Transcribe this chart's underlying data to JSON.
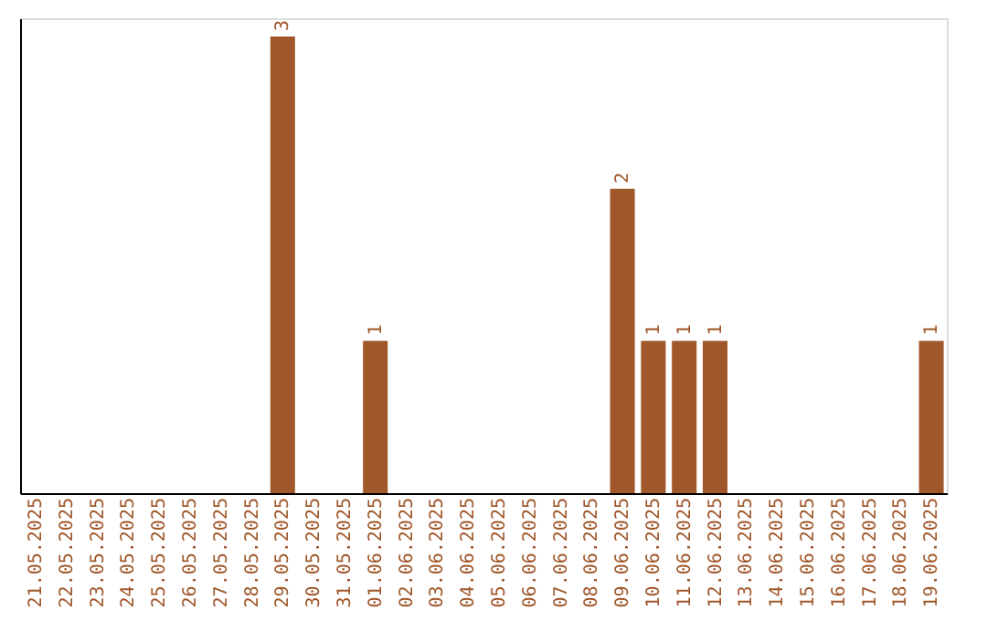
{
  "chart_data": {
    "type": "bar",
    "categories": [
      "21.05.2025",
      "22.05.2025",
      "23.05.2025",
      "24.05.2025",
      "25.05.2025",
      "26.05.2025",
      "27.05.2025",
      "28.05.2025",
      "29.05.2025",
      "30.05.2025",
      "31.05.2025",
      "01.06.2025",
      "02.06.2025",
      "03.06.2025",
      "04.06.2025",
      "05.06.2025",
      "06.06.2025",
      "07.06.2025",
      "08.06.2025",
      "09.06.2025",
      "10.06.2025",
      "11.06.2025",
      "12.06.2025",
      "13.06.2025",
      "14.06.2025",
      "15.06.2025",
      "16.06.2025",
      "17.06.2025",
      "18.06.2025",
      "19.06.2025"
    ],
    "values": [
      0,
      0,
      0,
      0,
      0,
      0,
      0,
      0,
      3,
      0,
      0,
      1,
      0,
      0,
      0,
      0,
      0,
      0,
      0,
      2,
      1,
      1,
      1,
      0,
      0,
      0,
      0,
      0,
      0,
      1
    ],
    "value_labels": [
      null,
      null,
      null,
      null,
      null,
      null,
      null,
      null,
      "3",
      null,
      null,
      "1",
      null,
      null,
      null,
      null,
      null,
      null,
      null,
      "2",
      "1",
      "1",
      "1",
      null,
      null,
      null,
      null,
      null,
      null,
      "1"
    ],
    "color": "#a0572a",
    "tick_labels": "x",
    "grid": false
  }
}
